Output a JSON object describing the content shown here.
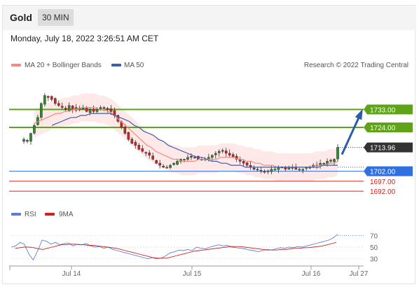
{
  "header": {
    "title": "Gold",
    "timeframe": "30 MIN",
    "datetime": "Monday, July 18, 2022 3:26:51 AM CET"
  },
  "legend": {
    "ma20": "MA 20 + Bollinger Bands",
    "ma50": "MA 50",
    "credit": "Research © 2022 Trading Central",
    "rsi": "RSI",
    "rsi9": "9MA"
  },
  "colors": {
    "ma20": "#f28b82",
    "ma50": "#3b5fa8",
    "green": "#5fa319",
    "blue": "#2f6fe0",
    "red": "#d0211c",
    "band": "#fde0e0",
    "current": "#333333"
  },
  "chart_data": [
    {
      "type": "candlestick",
      "instrument": "Gold",
      "interval": "30 MIN",
      "ylim": [
        1685,
        1750
      ],
      "x_ticks": [
        "Jul 14",
        "Jul 15",
        "Jul 16",
        "Jul 27"
      ],
      "levels": [
        {
          "value": 1733.0,
          "label": "1733.00",
          "color": "#5fa319",
          "kind": "resistance"
        },
        {
          "value": 1724.0,
          "label": "1724.00",
          "color": "#5fa319",
          "kind": "resistance"
        },
        {
          "value": 1713.96,
          "label": "1713.96",
          "color": "#333333",
          "kind": "current"
        },
        {
          "value": 1702.0,
          "label": "1702.00",
          "color": "#2f6fe0",
          "kind": "support"
        },
        {
          "value": 1697.0,
          "label": "1697.00",
          "color": "#d0211c",
          "kind": "support"
        },
        {
          "value": 1692.0,
          "label": "1692.00",
          "color": "#d0211c",
          "kind": "support"
        }
      ],
      "close_path": [
        1718,
        1717,
        1721,
        1725,
        1729,
        1736,
        1740,
        1739,
        1738,
        1736,
        1735,
        1734,
        1733,
        1735,
        1733,
        1734,
        1733,
        1734,
        1732,
        1733,
        1732,
        1733,
        1734,
        1734,
        1733,
        1732,
        1730,
        1727,
        1724,
        1721,
        1718,
        1716,
        1715,
        1713,
        1712,
        1711,
        1710,
        1708,
        1706,
        1705,
        1704,
        1704,
        1705,
        1706,
        1707,
        1708,
        1708,
        1709,
        1709,
        1709,
        1708,
        1708,
        1708,
        1709,
        1710,
        1711,
        1712,
        1712,
        1711,
        1710,
        1709,
        1708,
        1707,
        1706,
        1705,
        1704,
        1703,
        1703,
        1702,
        1702,
        1702,
        1703,
        1703,
        1704,
        1704,
        1703,
        1704,
        1704,
        1703,
        1703,
        1703,
        1704,
        1704,
        1705,
        1705,
        1706,
        1706,
        1707,
        1707,
        1708,
        1714
      ],
      "ma20_path": [
        1726,
        1727,
        1728,
        1729,
        1730,
        1731,
        1731,
        1732,
        1732,
        1733,
        1733,
        1734,
        1734,
        1734,
        1734,
        1733,
        1733,
        1732,
        1731,
        1729,
        1727,
        1725,
        1723,
        1721,
        1719,
        1717,
        1715,
        1714,
        1712,
        1711,
        1710,
        1709,
        1708,
        1708,
        1707,
        1707,
        1707,
        1707,
        1708,
        1708,
        1708,
        1708,
        1708,
        1709,
        1709,
        1709,
        1709,
        1708,
        1708,
        1707,
        1707,
        1706,
        1706,
        1705,
        1705,
        1705,
        1704,
        1704,
        1704,
        1704,
        1704,
        1704,
        1704,
        1704,
        1704,
        1705,
        1705,
        1705,
        1706,
        1706,
        1707
      ],
      "ma50_path": [
        1725,
        1726,
        1727,
        1728,
        1729,
        1729,
        1730,
        1730,
        1731,
        1731,
        1731,
        1731,
        1731,
        1730,
        1729,
        1728,
        1727,
        1725,
        1724,
        1722,
        1721,
        1720,
        1718,
        1717,
        1715,
        1714,
        1713,
        1712,
        1711,
        1710,
        1709,
        1709,
        1708,
        1707,
        1707,
        1706,
        1706,
        1705,
        1705,
        1705,
        1704,
        1704,
        1704,
        1704,
        1704,
        1704,
        1704,
        1704,
        1704,
        1704,
        1704,
        1704,
        1704,
        1704,
        1704,
        1704,
        1705,
        1705,
        1705,
        1705
      ],
      "forecast_arrow": {
        "from": 1713.96,
        "to": 1733.0,
        "direction": "up"
      }
    },
    {
      "type": "line",
      "indicator": "RSI",
      "ylim": [
        20,
        80
      ],
      "y_ticks": [
        70,
        50,
        30
      ],
      "series": [
        {
          "name": "RSI",
          "color": "#5b7fd6",
          "values": [
            50,
            52,
            58,
            55,
            38,
            28,
            44,
            62,
            60,
            55,
            58,
            54,
            56,
            57,
            52,
            55,
            54,
            56,
            52,
            50,
            51,
            48,
            50,
            46,
            44,
            42,
            40,
            38,
            36,
            34,
            32,
            30,
            32,
            30,
            31,
            35,
            40,
            42,
            45,
            44,
            46,
            44,
            50,
            48,
            47,
            50,
            52,
            54,
            52,
            53,
            50,
            49,
            48,
            47,
            45,
            44,
            42,
            44,
            46,
            45,
            47,
            49,
            48,
            50,
            49,
            51,
            50,
            52,
            54,
            56,
            58,
            60,
            62,
            66,
            72
          ]
        },
        {
          "name": "9MA",
          "color": "#d0211c",
          "values": [
            48,
            49,
            50,
            50,
            49,
            47,
            46,
            48,
            50,
            52,
            54,
            54,
            55,
            55,
            54,
            54,
            53,
            53,
            52,
            51,
            50,
            49,
            48,
            46,
            44,
            42,
            40,
            38,
            36,
            34,
            32,
            31,
            31,
            31,
            33,
            35,
            37,
            39,
            41,
            43,
            44,
            45,
            46,
            47,
            48,
            49,
            50,
            51,
            51,
            51,
            50,
            49,
            48,
            47,
            46,
            45,
            45,
            45,
            46,
            46,
            47,
            48,
            48,
            49,
            49,
            50,
            51,
            52,
            54,
            56,
            58
          ]
        }
      ]
    }
  ]
}
